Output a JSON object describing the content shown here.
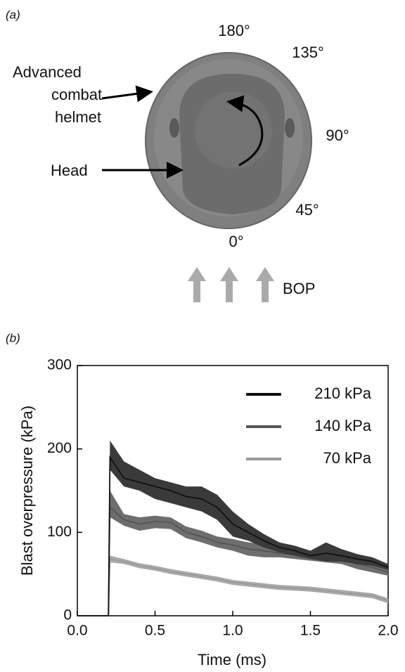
{
  "panel_a": {
    "label": "(a)",
    "angles": [
      "180°",
      "135°",
      "90°",
      "45°",
      "0°"
    ],
    "helmet_label": [
      "Advanced",
      "combat",
      "helmet"
    ],
    "head_label": "Head",
    "bop_label": "BOP"
  },
  "panel_b": {
    "label": "(b)"
  },
  "chart_data": {
    "type": "line",
    "x_label": "Time (ms)",
    "y_label": "Blast overpressure (kPa)",
    "x": [
      0,
      0.2,
      0.21,
      0.3,
      0.4,
      0.5,
      0.6,
      0.7,
      0.8,
      0.9,
      1.0,
      1.1,
      1.2,
      1.3,
      1.4,
      1.5,
      1.6,
      1.7,
      1.8,
      1.9,
      2.0
    ],
    "series": [
      {
        "name": "210 kPa",
        "color": "#111111",
        "band_color": "#3a3a3a",
        "values": [
          0,
          0,
          190,
          165,
          160,
          155,
          150,
          143,
          140,
          130,
          110,
          100,
          90,
          82,
          78,
          72,
          75,
          72,
          68,
          65,
          58
        ],
        "lower": [
          0,
          0,
          175,
          155,
          150,
          140,
          135,
          130,
          125,
          115,
          95,
          90,
          82,
          76,
          72,
          68,
          65,
          65,
          62,
          60,
          55
        ],
        "upper": [
          0,
          0,
          210,
          185,
          175,
          165,
          160,
          155,
          155,
          145,
          125,
          110,
          98,
          88,
          84,
          78,
          88,
          80,
          74,
          70,
          62
        ]
      },
      {
        "name": "140 kPa",
        "color": "#555555",
        "band_color": "#6e6e6e",
        "values": [
          0,
          0,
          130,
          115,
          110,
          113,
          112,
          100,
          95,
          88,
          85,
          80,
          78,
          75,
          73,
          70,
          70,
          68,
          62,
          58,
          52
        ],
        "lower": [
          0,
          0,
          118,
          108,
          102,
          105,
          104,
          93,
          88,
          82,
          78,
          72,
          70,
          70,
          68,
          66,
          64,
          62,
          56,
          52,
          48
        ],
        "upper": [
          0,
          0,
          150,
          122,
          118,
          120,
          118,
          107,
          102,
          95,
          92,
          88,
          86,
          82,
          78,
          75,
          76,
          74,
          68,
          64,
          56
        ]
      },
      {
        "name": "70 kPa",
        "color": "#999999",
        "band_color": "#aaaaaa",
        "values": [
          0,
          0,
          68,
          65,
          60,
          57,
          53,
          50,
          47,
          44,
          40,
          38,
          36,
          34,
          33,
          32,
          30,
          28,
          26,
          24,
          18
        ],
        "lower": [
          0,
          0,
          64,
          62,
          57,
          54,
          50,
          47,
          44,
          41,
          37,
          35,
          33,
          31,
          30,
          29,
          27,
          25,
          23,
          21,
          15
        ],
        "upper": [
          0,
          0,
          72,
          68,
          63,
          60,
          56,
          53,
          50,
          47,
          43,
          41,
          39,
          37,
          36,
          35,
          33,
          31,
          29,
          27,
          21
        ]
      }
    ],
    "xlim": [
      0,
      2
    ],
    "ylim": [
      0,
      300
    ],
    "xticks": [
      {
        "value": 0,
        "label": "0.0"
      },
      0.5,
      {
        "value": 1,
        "label": "1.0"
      },
      1.5,
      {
        "value": 2,
        "label": "2.0"
      }
    ],
    "yticks": [
      0,
      100,
      200,
      300
    ],
    "legend": "upper-right"
  }
}
